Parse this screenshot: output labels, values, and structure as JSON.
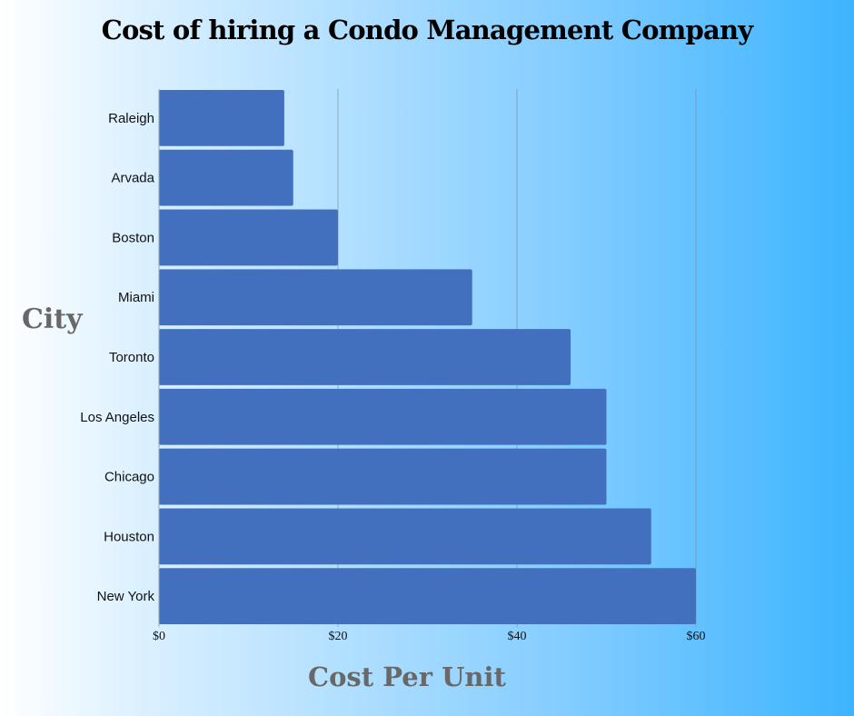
{
  "chart_data": {
    "type": "bar",
    "orientation": "horizontal",
    "title": "Cost of hiring a Condo Management Company",
    "xlabel": "Cost Per Unit",
    "ylabel": "City",
    "categories": [
      "Raleigh",
      "Arvada",
      "Boston",
      "Miami",
      "Toronto",
      "Los Angeles",
      "Chicago",
      "Houston",
      "New York"
    ],
    "values": [
      14,
      15,
      20,
      35,
      46,
      50,
      50,
      55,
      60
    ],
    "xlim": [
      0,
      60
    ],
    "xticks": [
      0,
      20,
      40,
      60
    ],
    "xtick_labels": [
      "$0",
      "$20",
      "$40",
      "$60"
    ],
    "grid": "vertical",
    "bar_color": "#4270bf",
    "gridline_color": "#7a8fa6"
  }
}
